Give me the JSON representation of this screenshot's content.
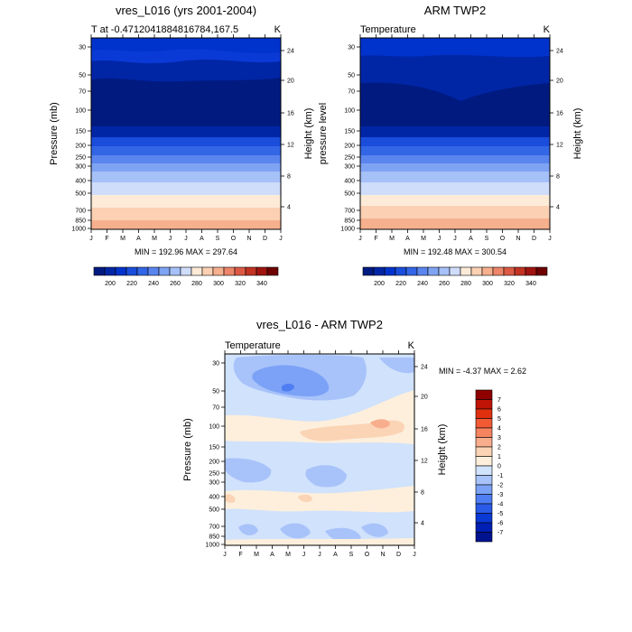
{
  "palettes": {
    "temperature": [
      "#001a80",
      "#0026a6",
      "#0033cc",
      "#1a4ddb",
      "#3366e6",
      "#5a85ee",
      "#7fa3f3",
      "#a6c0f8",
      "#cfddfb",
      "#fdebd8",
      "#fbd0b3",
      "#f6b08e",
      "#ec8569",
      "#dc5a44",
      "#c23322",
      "#a01410",
      "#6e0000"
    ],
    "difference": [
      "#00138f",
      "#001fb3",
      "#0a3ad6",
      "#2a5ae8",
      "#4f7ef3",
      "#7ba2f6",
      "#a8c2fa",
      "#d0e2fc",
      "#fdefdc",
      "#fbd3b5",
      "#f8ad8c",
      "#f5845f",
      "#f25a33",
      "#e0300f",
      "#bf1406",
      "#8f0000"
    ]
  },
  "chart_data": [
    {
      "type": "heatmap",
      "title": "vres_L016 (yrs 2001-2004)",
      "subtitle_left": "T at -0.471204188481678​4,167.5",
      "subtitle_right": "K",
      "xlabel": "",
      "ylabel": "Pressure (mb)",
      "ylabel_right": "Height (km)",
      "x_ticks": [
        "J",
        "F",
        "M",
        "A",
        "M",
        "J",
        "J",
        "A",
        "S",
        "O",
        "N",
        "D",
        "J"
      ],
      "y_ticks": [
        "30",
        "50",
        "70",
        "100",
        "150",
        "200",
        "250",
        "300",
        "400",
        "500",
        "700",
        "850",
        "1000"
      ],
      "y_ticks_right": [
        "24",
        "20",
        "16",
        "12",
        "8",
        "4"
      ],
      "stats": "MIN = 192.96 MAX = 297.64",
      "colorbar_labels": [
        "200",
        "220",
        "240",
        "260",
        "280",
        "300",
        "320",
        "340"
      ],
      "levels": [
        190,
        195,
        200,
        205,
        210,
        215,
        220,
        230,
        240,
        250,
        260,
        270,
        280,
        290,
        300
      ],
      "band_values": [
        {
          "pressure": 30,
          "value": 225
        },
        {
          "pressure": 50,
          "value": 205
        },
        {
          "pressure": 70,
          "value": 195
        },
        {
          "pressure": 100,
          "value": 193
        },
        {
          "pressure": 150,
          "value": 205
        },
        {
          "pressure": 200,
          "value": 218
        },
        {
          "pressure": 250,
          "value": 228
        },
        {
          "pressure": 300,
          "value": 238
        },
        {
          "pressure": 400,
          "value": 252
        },
        {
          "pressure": 500,
          "value": 262
        },
        {
          "pressure": 700,
          "value": 280
        },
        {
          "pressure": 850,
          "value": 290
        },
        {
          "pressure": 1000,
          "value": 297
        }
      ]
    },
    {
      "type": "heatmap",
      "title": "ARM TWP2",
      "subtitle_left": "Temperature",
      "subtitle_right": "K",
      "xlabel": "",
      "ylabel": "pressure level",
      "ylabel_right": "Height (km)",
      "x_ticks": [
        "J",
        "F",
        "M",
        "A",
        "M",
        "J",
        "J",
        "A",
        "S",
        "O",
        "N",
        "D",
        "J"
      ],
      "y_ticks": [
        "30",
        "50",
        "70",
        "100",
        "150",
        "200",
        "250",
        "300",
        "400",
        "500",
        "700",
        "850",
        "1000"
      ],
      "y_ticks_right": [
        "24",
        "20",
        "16",
        "12",
        "8",
        "4"
      ],
      "stats": "MIN = 192.48 MAX = 300.54",
      "colorbar_labels": [
        "200",
        "220",
        "240",
        "260",
        "280",
        "300",
        "320",
        "340"
      ],
      "band_values": [
        {
          "pressure": 30,
          "value": 222
        },
        {
          "pressure": 50,
          "value": 208
        },
        {
          "pressure": 70,
          "value": 198
        },
        {
          "pressure": 100,
          "value": 192
        },
        {
          "pressure": 150,
          "value": 205
        },
        {
          "pressure": 200,
          "value": 218
        },
        {
          "pressure": 250,
          "value": 228
        },
        {
          "pressure": 300,
          "value": 238
        },
        {
          "pressure": 400,
          "value": 252
        },
        {
          "pressure": 500,
          "value": 262
        },
        {
          "pressure": 700,
          "value": 280
        },
        {
          "pressure": 850,
          "value": 292
        },
        {
          "pressure": 1000,
          "value": 300
        }
      ]
    },
    {
      "type": "heatmap",
      "title": "vres_L016 - ARM TWP2",
      "subtitle_left": "Temperature",
      "subtitle_right": "K",
      "xlabel": "",
      "ylabel": "Pressure (mb)",
      "ylabel_right": "Height (km)",
      "x_ticks": [
        "J",
        "F",
        "M",
        "A",
        "M",
        "J",
        "J",
        "A",
        "S",
        "O",
        "N",
        "D",
        "J"
      ],
      "y_ticks": [
        "30",
        "50",
        "70",
        "100",
        "150",
        "200",
        "250",
        "300",
        "400",
        "500",
        "700",
        "850",
        "1000"
      ],
      "y_ticks_right": [
        "24",
        "20",
        "16",
        "12",
        "8",
        "4"
      ],
      "stats": "MIN = -4.37 MAX =  2.62",
      "colorbar_labels": [
        "7",
        "6",
        "5",
        "4",
        "3",
        "2",
        "1",
        "0",
        "-1",
        "-2",
        "-3",
        "-4",
        "-5",
        "-6",
        "-7"
      ]
    }
  ]
}
